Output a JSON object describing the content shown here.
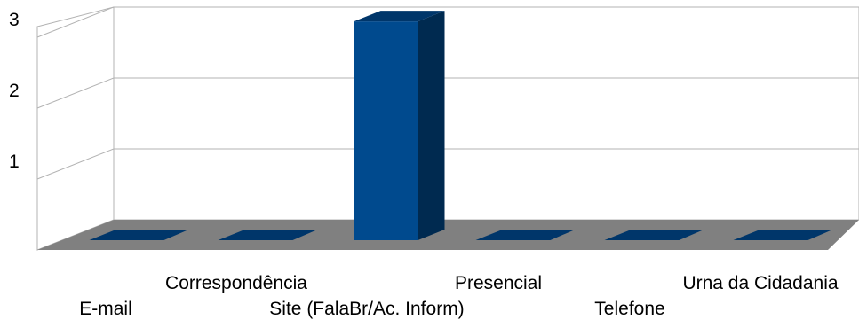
{
  "chart_data": {
    "type": "bar",
    "style": "3d",
    "categories": [
      "E-mail",
      "Correspondência",
      "Site (FalaBr/Ac. Inform)",
      "Presencial",
      "Telefone",
      "Urna da Cidadania"
    ],
    "values": [
      0,
      0,
      3,
      0,
      0,
      0
    ],
    "y_ticks": [
      "1",
      "2",
      "3"
    ],
    "ylim": [
      0,
      3
    ],
    "grid": true,
    "legend": "none",
    "colors": {
      "bar_front": "#004a8e",
      "bar_side": "#002a50",
      "bar_top": "#00366a",
      "floor": "#808080",
      "grid": "#b3b3b3"
    }
  }
}
